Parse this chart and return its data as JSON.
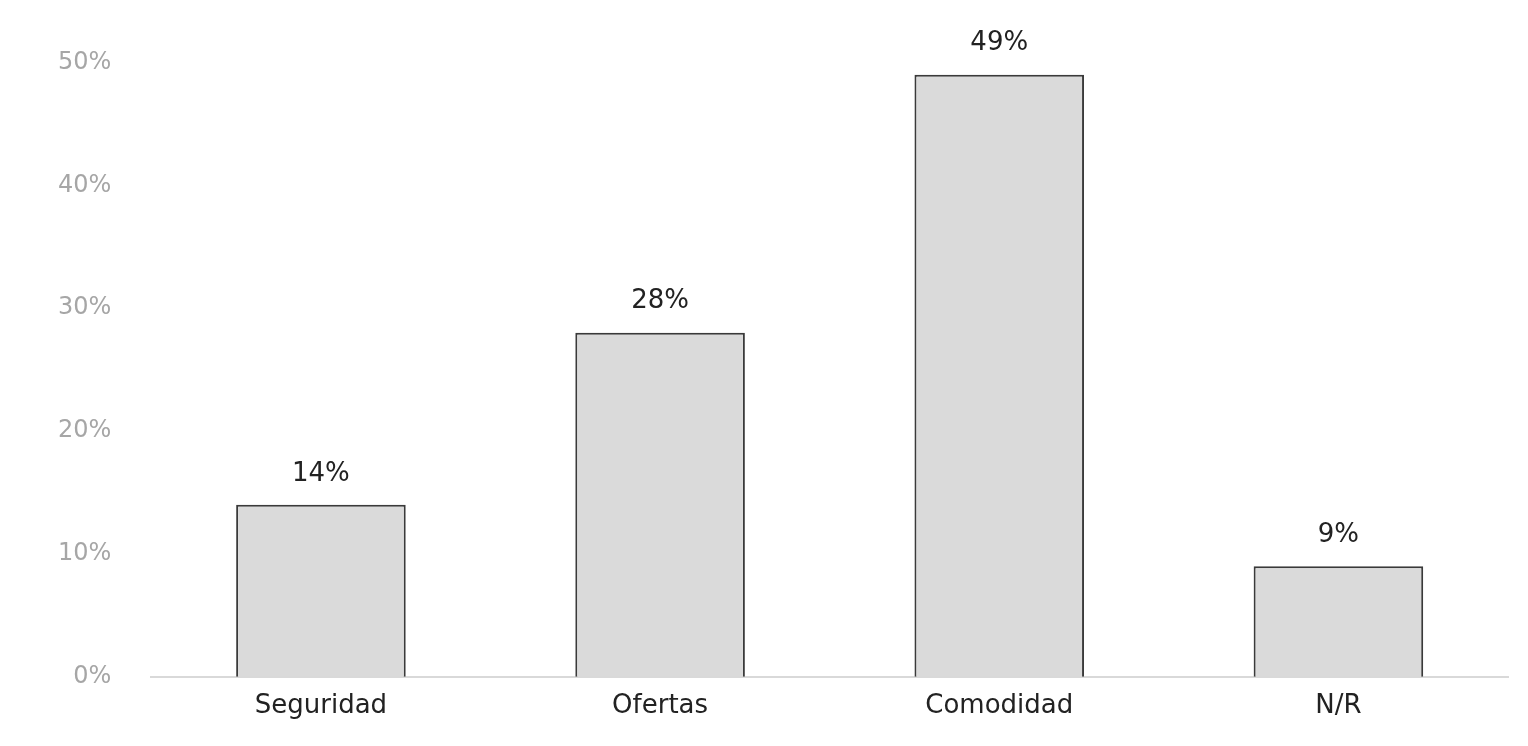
{
  "chart_data": {
    "type": "bar",
    "categories": [
      "Seguridad",
      "Ofertas",
      "Comodidad",
      "N/R"
    ],
    "values": [
      14,
      28,
      49,
      9
    ],
    "value_labels": [
      "14%",
      "28%",
      "49%",
      "9%"
    ],
    "color": "#dadada",
    "ylim": [
      0,
      50
    ],
    "yticks": [
      {
        "value": 0,
        "label": "0%"
      },
      {
        "value": 10,
        "label": "10%"
      },
      {
        "value": 20,
        "label": "20%"
      },
      {
        "value": 30,
        "label": "30%"
      },
      {
        "value": 40,
        "label": "40%"
      },
      {
        "value": 50,
        "label": "50%"
      }
    ],
    "grid": false,
    "legend": false
  }
}
